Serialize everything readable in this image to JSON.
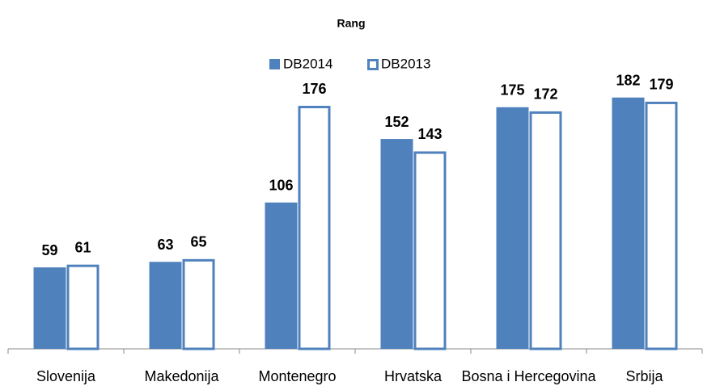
{
  "chart_data": {
    "type": "bar",
    "title": "Rang",
    "categories": [
      "Slovenija",
      "Makedonija",
      "Montenegro",
      "Hrvatska",
      "Bosna i Hercegovina",
      "Srbija"
    ],
    "series": [
      {
        "name": "DB2014",
        "color": "#4f81bd",
        "values": [
          59,
          63,
          106,
          152,
          175,
          182
        ]
      },
      {
        "name": "DB2013",
        "color": "#4f81bd",
        "values": [
          61,
          65,
          176,
          143,
          172,
          179
        ]
      }
    ],
    "ylim": [
      0,
      200
    ]
  }
}
